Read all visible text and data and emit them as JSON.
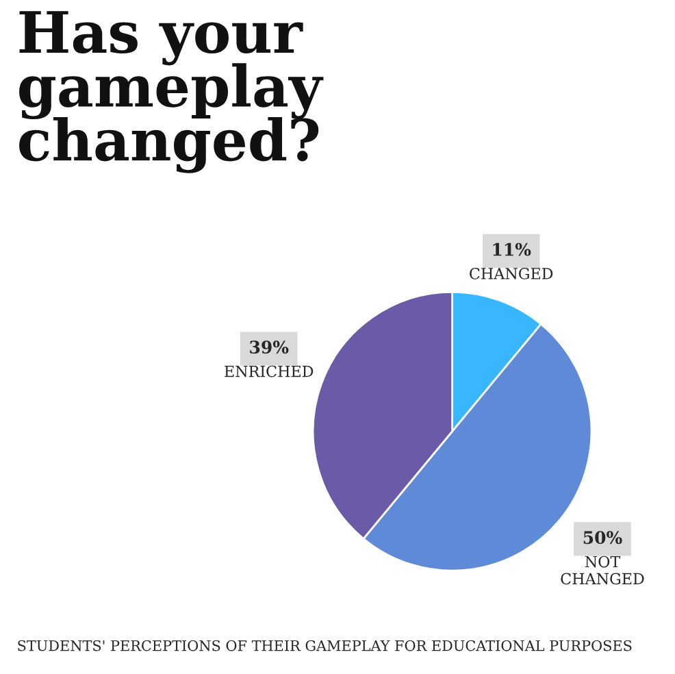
{
  "chart_data": {
    "type": "pie",
    "title": "Has your\ngameplay\nchanged?",
    "categories": [
      "CHANGED",
      "NOT\nCHANGED",
      "ENRICHED"
    ],
    "values": [
      11,
      50,
      39
    ],
    "value_labels": [
      "11%",
      "50%",
      "39%"
    ],
    "colors": [
      "#38b6ff",
      "#5e8ad8",
      "#6a5aa8"
    ],
    "legend": false,
    "annotations": [
      "STUDENTS' PERCEPTIONS OF THEIR GAMEPLAY FOR EDUCATIONAL PURPOSES"
    ]
  }
}
